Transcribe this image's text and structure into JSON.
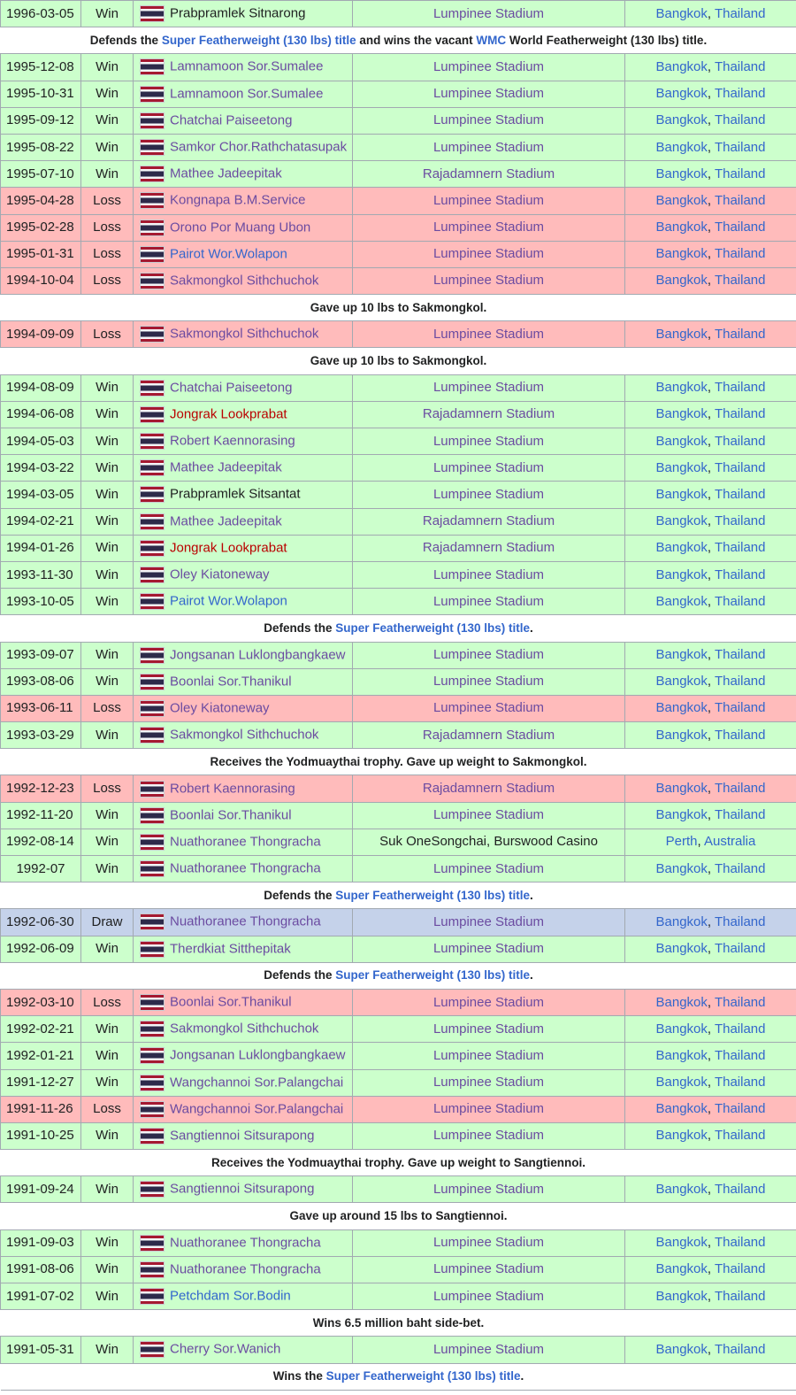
{
  "page": {
    "colors": {
      "win": "#ccffcc",
      "loss": "#ffbbbb",
      "draw": "#c5d2ea",
      "link": "#3366cc",
      "visited_link": "#6b4ba1",
      "redlink": "#ba0000",
      "thai_flag_red": "#a51931",
      "thai_flag_blue": "#2d2a4a"
    }
  },
  "flag_icon": "thailand-flag-icon",
  "rows": [
    {
      "type": "fight",
      "date": "1996-03-05",
      "result": "Win",
      "opponent": "Prabpramlek Sitnarong",
      "opp_style": "plain",
      "venue": "Lumpinee Stadium",
      "city": "Bangkok",
      "country": "Thailand"
    },
    {
      "type": "note",
      "parts": [
        {
          "t": "Defends the "
        },
        {
          "t": "Super Featherweight (130 lbs) title",
          "link": true
        },
        {
          "t": " and wins the vacant "
        },
        {
          "t": "WMC",
          "link": true
        },
        {
          "t": " World Featherweight (130 lbs) title."
        }
      ]
    },
    {
      "type": "fight",
      "date": "1995-12-08",
      "result": "Win",
      "opponent": "Lamnamoon Sor.Sumalee",
      "opp_style": "visited",
      "venue": "Lumpinee Stadium",
      "city": "Bangkok",
      "country": "Thailand"
    },
    {
      "type": "fight",
      "date": "1995-10-31",
      "result": "Win",
      "opponent": "Lamnamoon Sor.Sumalee",
      "opp_style": "visited",
      "venue": "Lumpinee Stadium",
      "city": "Bangkok",
      "country": "Thailand"
    },
    {
      "type": "fight",
      "date": "1995-09-12",
      "result": "Win",
      "opponent": "Chatchai Paiseetong",
      "opp_style": "visited",
      "venue": "Lumpinee Stadium",
      "city": "Bangkok",
      "country": "Thailand"
    },
    {
      "type": "fight",
      "date": "1995-08-22",
      "result": "Win",
      "opponent": "Samkor Chor.Rathchatasupak",
      "opp_style": "visited",
      "venue": "Lumpinee Stadium",
      "city": "Bangkok",
      "country": "Thailand"
    },
    {
      "type": "fight",
      "date": "1995-07-10",
      "result": "Win",
      "opponent": "Mathee Jadeepitak",
      "opp_style": "visited",
      "venue": "Rajadamnern Stadium",
      "city": "Bangkok",
      "country": "Thailand"
    },
    {
      "type": "fight",
      "date": "1995-04-28",
      "result": "Loss",
      "opponent": "Kongnapa B.M.Service",
      "opp_style": "visited",
      "venue": "Lumpinee Stadium",
      "city": "Bangkok",
      "country": "Thailand"
    },
    {
      "type": "fight",
      "date": "1995-02-28",
      "result": "Loss",
      "opponent": "Orono Por Muang Ubon",
      "opp_style": "visited",
      "venue": "Lumpinee Stadium",
      "city": "Bangkok",
      "country": "Thailand"
    },
    {
      "type": "fight",
      "date": "1995-01-31",
      "result": "Loss",
      "opponent": "Pairot Wor.Wolapon",
      "opp_style": "link",
      "venue": "Lumpinee Stadium",
      "city": "Bangkok",
      "country": "Thailand"
    },
    {
      "type": "fight",
      "date": "1994-10-04",
      "result": "Loss",
      "opponent": "Sakmongkol Sithchuchok",
      "opp_style": "visited",
      "venue": "Lumpinee Stadium",
      "city": "Bangkok",
      "country": "Thailand"
    },
    {
      "type": "note",
      "parts": [
        {
          "t": "Gave up 10 lbs to Sakmongkol."
        }
      ]
    },
    {
      "type": "fight",
      "date": "1994-09-09",
      "result": "Loss",
      "opponent": "Sakmongkol Sithchuchok",
      "opp_style": "visited",
      "venue": "Lumpinee Stadium",
      "city": "Bangkok",
      "country": "Thailand"
    },
    {
      "type": "note",
      "parts": [
        {
          "t": "Gave up 10 lbs to Sakmongkol."
        }
      ]
    },
    {
      "type": "fight",
      "date": "1994-08-09",
      "result": "Win",
      "opponent": "Chatchai Paiseetong",
      "opp_style": "visited",
      "venue": "Lumpinee Stadium",
      "city": "Bangkok",
      "country": "Thailand"
    },
    {
      "type": "fight",
      "date": "1994-06-08",
      "result": "Win",
      "opponent": "Jongrak Lookprabat",
      "opp_style": "red",
      "venue": "Rajadamnern Stadium",
      "city": "Bangkok",
      "country": "Thailand"
    },
    {
      "type": "fight",
      "date": "1994-05-03",
      "result": "Win",
      "opponent": "Robert Kaennorasing",
      "opp_style": "visited",
      "venue": "Lumpinee Stadium",
      "city": "Bangkok",
      "country": "Thailand"
    },
    {
      "type": "fight",
      "date": "1994-03-22",
      "result": "Win",
      "opponent": "Mathee Jadeepitak",
      "opp_style": "visited",
      "venue": "Lumpinee Stadium",
      "city": "Bangkok",
      "country": "Thailand"
    },
    {
      "type": "fight",
      "date": "1994-03-05",
      "result": "Win",
      "opponent": "Prabpramlek Sitsantat",
      "opp_style": "plain",
      "venue": "Lumpinee Stadium",
      "city": "Bangkok",
      "country": "Thailand"
    },
    {
      "type": "fight",
      "date": "1994-02-21",
      "result": "Win",
      "opponent": "Mathee Jadeepitak",
      "opp_style": "visited",
      "venue": "Rajadamnern Stadium",
      "city": "Bangkok",
      "country": "Thailand"
    },
    {
      "type": "fight",
      "date": "1994-01-26",
      "result": "Win",
      "opponent": "Jongrak Lookprabat",
      "opp_style": "red",
      "venue": "Rajadamnern Stadium",
      "city": "Bangkok",
      "country": "Thailand"
    },
    {
      "type": "fight",
      "date": "1993-11-30",
      "result": "Win",
      "opponent": "Oley Kiatoneway",
      "opp_style": "visited",
      "venue": "Lumpinee Stadium",
      "city": "Bangkok",
      "country": "Thailand"
    },
    {
      "type": "fight",
      "date": "1993-10-05",
      "result": "Win",
      "opponent": "Pairot Wor.Wolapon",
      "opp_style": "link",
      "venue": "Lumpinee Stadium",
      "city": "Bangkok",
      "country": "Thailand"
    },
    {
      "type": "note",
      "parts": [
        {
          "t": "Defends the "
        },
        {
          "t": "Super Featherweight (130 lbs) title",
          "link": true
        },
        {
          "t": "."
        }
      ]
    },
    {
      "type": "fight",
      "date": "1993-09-07",
      "result": "Win",
      "opponent": "Jongsanan Luklongbangkaew",
      "opp_style": "visited",
      "venue": "Lumpinee Stadium",
      "city": "Bangkok",
      "country": "Thailand"
    },
    {
      "type": "fight",
      "date": "1993-08-06",
      "result": "Win",
      "opponent": "Boonlai Sor.Thanikul",
      "opp_style": "visited",
      "venue": "Lumpinee Stadium",
      "city": "Bangkok",
      "country": "Thailand"
    },
    {
      "type": "fight",
      "date": "1993-06-11",
      "result": "Loss",
      "opponent": "Oley Kiatoneway",
      "opp_style": "visited",
      "venue": "Lumpinee Stadium",
      "city": "Bangkok",
      "country": "Thailand"
    },
    {
      "type": "fight",
      "date": "1993-03-29",
      "result": "Win",
      "opponent": "Sakmongkol Sithchuchok",
      "opp_style": "visited",
      "venue": "Rajadamnern Stadium",
      "city": "Bangkok",
      "country": "Thailand"
    },
    {
      "type": "note",
      "parts": [
        {
          "t": "Receives the Yodmuaythai trophy. Gave up weight to Sakmongkol."
        }
      ]
    },
    {
      "type": "fight",
      "date": "1992-12-23",
      "result": "Loss",
      "opponent": "Robert Kaennorasing",
      "opp_style": "visited",
      "venue": "Rajadamnern Stadium",
      "city": "Bangkok",
      "country": "Thailand"
    },
    {
      "type": "fight",
      "date": "1992-11-20",
      "result": "Win",
      "opponent": "Boonlai Sor.Thanikul",
      "opp_style": "visited",
      "venue": "Lumpinee Stadium",
      "city": "Bangkok",
      "country": "Thailand"
    },
    {
      "type": "fight",
      "date": "1992-08-14",
      "result": "Win",
      "opponent": "Nuathoranee Thongracha",
      "opp_style": "visited",
      "venue": "Suk OneSongchai, Burswood Casino",
      "venue_style": "plain",
      "city": "Perth",
      "country": "Australia",
      "flag": "thailand"
    },
    {
      "type": "fight",
      "date": "1992-07",
      "result": "Win",
      "opponent": "Nuathoranee Thongracha",
      "opp_style": "visited",
      "venue": "Lumpinee Stadium",
      "city": "Bangkok",
      "country": "Thailand",
      "date_center": true
    },
    {
      "type": "note",
      "parts": [
        {
          "t": "Defends the "
        },
        {
          "t": "Super Featherweight (130 lbs) title",
          "link": true
        },
        {
          "t": "."
        }
      ]
    },
    {
      "type": "fight",
      "date": "1992-06-30",
      "result": "Draw",
      "opponent": "Nuathoranee Thongracha",
      "opp_style": "visited",
      "venue": "Lumpinee Stadium",
      "city": "Bangkok",
      "country": "Thailand"
    },
    {
      "type": "fight",
      "date": "1992-06-09",
      "result": "Win",
      "opponent": "Therdkiat Sitthepitak",
      "opp_style": "visited",
      "venue": "Lumpinee Stadium",
      "city": "Bangkok",
      "country": "Thailand"
    },
    {
      "type": "note",
      "parts": [
        {
          "t": "Defends the "
        },
        {
          "t": "Super Featherweight (130 lbs) title",
          "link": true
        },
        {
          "t": "."
        }
      ]
    },
    {
      "type": "fight",
      "date": "1992-03-10",
      "result": "Loss",
      "opponent": "Boonlai Sor.Thanikul",
      "opp_style": "visited",
      "venue": "Lumpinee Stadium",
      "city": "Bangkok",
      "country": "Thailand"
    },
    {
      "type": "fight",
      "date": "1992-02-21",
      "result": "Win",
      "opponent": "Sakmongkol Sithchuchok",
      "opp_style": "visited",
      "venue": "Lumpinee Stadium",
      "city": "Bangkok",
      "country": "Thailand"
    },
    {
      "type": "fight",
      "date": "1992-01-21",
      "result": "Win",
      "opponent": "Jongsanan Luklongbangkaew",
      "opp_style": "visited",
      "venue": "Lumpinee Stadium",
      "city": "Bangkok",
      "country": "Thailand"
    },
    {
      "type": "fight",
      "date": "1991-12-27",
      "result": "Win",
      "opponent": "Wangchannoi Sor.Palangchai",
      "opp_style": "visited",
      "venue": "Lumpinee Stadium",
      "city": "Bangkok",
      "country": "Thailand"
    },
    {
      "type": "fight",
      "date": "1991-11-26",
      "result": "Loss",
      "opponent": "Wangchannoi Sor.Palangchai",
      "opp_style": "visited",
      "venue": "Lumpinee Stadium",
      "city": "Bangkok",
      "country": "Thailand"
    },
    {
      "type": "fight",
      "date": "1991-10-25",
      "result": "Win",
      "opponent": "Sangtiennoi Sitsurapong",
      "opp_style": "visited",
      "venue": "Lumpinee Stadium",
      "city": "Bangkok",
      "country": "Thailand"
    },
    {
      "type": "note",
      "parts": [
        {
          "t": "Receives the Yodmuaythai trophy. Gave up weight to Sangtiennoi."
        }
      ]
    },
    {
      "type": "fight",
      "date": "1991-09-24",
      "result": "Win",
      "opponent": "Sangtiennoi Sitsurapong",
      "opp_style": "visited",
      "venue": "Lumpinee Stadium",
      "city": "Bangkok",
      "country": "Thailand"
    },
    {
      "type": "note",
      "parts": [
        {
          "t": "Gave up around 15 lbs to Sangtiennoi."
        }
      ]
    },
    {
      "type": "fight",
      "date": "1991-09-03",
      "result": "Win",
      "opponent": "Nuathoranee Thongracha",
      "opp_style": "visited",
      "venue": "Lumpinee Stadium",
      "city": "Bangkok",
      "country": "Thailand"
    },
    {
      "type": "fight",
      "date": "1991-08-06",
      "result": "Win",
      "opponent": "Nuathoranee Thongracha",
      "opp_style": "visited",
      "venue": "Lumpinee Stadium",
      "city": "Bangkok",
      "country": "Thailand"
    },
    {
      "type": "fight",
      "date": "1991-07-02",
      "result": "Win",
      "opponent": "Petchdam Sor.Bodin",
      "opp_style": "link",
      "venue": "Lumpinee Stadium",
      "city": "Bangkok",
      "country": "Thailand"
    },
    {
      "type": "note",
      "parts": [
        {
          "t": "Wins 6.5 million baht side-bet."
        }
      ]
    },
    {
      "type": "fight",
      "date": "1991-05-31",
      "result": "Win",
      "opponent": "Cherry Sor.Wanich",
      "opp_style": "visited",
      "venue": "Lumpinee Stadium",
      "city": "Bangkok",
      "country": "Thailand"
    },
    {
      "type": "note",
      "parts": [
        {
          "t": "Wins the "
        },
        {
          "t": "Super Featherweight (130 lbs) title",
          "link": true
        },
        {
          "t": "."
        }
      ]
    }
  ]
}
